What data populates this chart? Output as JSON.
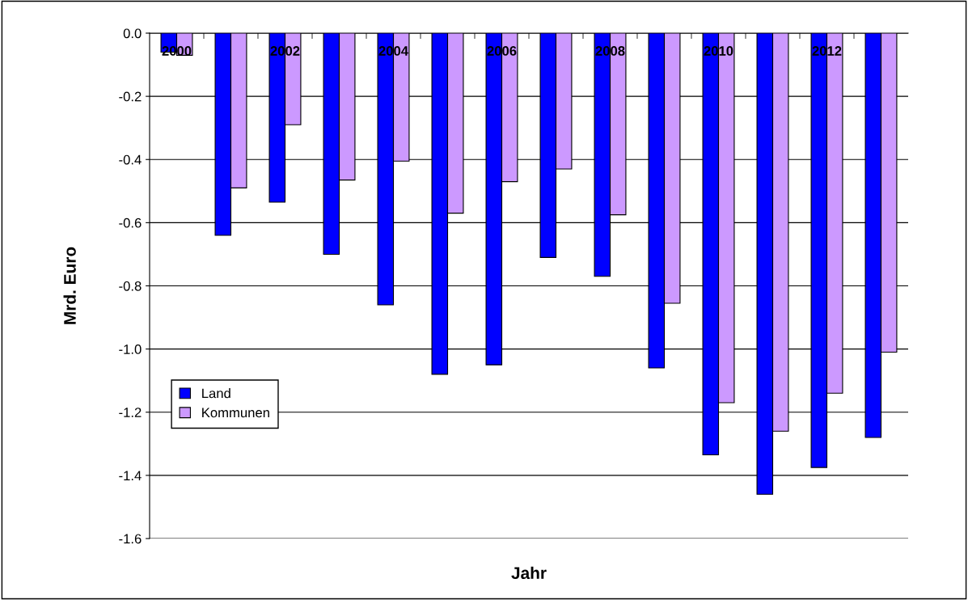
{
  "chart_data": {
    "type": "bar",
    "xlabel": "Jahr",
    "ylabel": "Mrd. Euro",
    "categories": [
      "2000",
      null,
      "2002",
      null,
      "2004",
      null,
      "2006",
      null,
      "2008",
      null,
      "2010",
      null,
      "2012",
      null
    ],
    "series": [
      {
        "name": "Land",
        "color": "#0000ff",
        "values": [
          -0.06,
          -0.64,
          -0.535,
          -0.7,
          -0.86,
          -1.08,
          -1.05,
          -0.71,
          -0.77,
          -1.06,
          -1.335,
          -1.46,
          -1.375,
          -1.28
        ]
      },
      {
        "name": "Kommunen",
        "color": "#cc99ff",
        "values": [
          -0.07,
          -0.49,
          -0.29,
          -0.465,
          -0.405,
          -0.57,
          -0.47,
          -0.43,
          -0.575,
          -0.855,
          -1.17,
          -1.26,
          -1.14,
          -1.01
        ]
      }
    ],
    "ylim": [
      -1.6,
      0.0
    ],
    "yticks": [
      {
        "value": -1.6,
        "label": "-1.6"
      },
      {
        "value": -1.4,
        "label": "-1.4"
      },
      {
        "value": -1.2,
        "label": "-1.2"
      },
      {
        "value": -1.0,
        "label": "-1.0"
      },
      {
        "value": -0.8,
        "label": "-0.8"
      },
      {
        "value": -0.6,
        "label": "-0.6"
      },
      {
        "value": -0.4,
        "label": "-0.4"
      },
      {
        "value": -0.2,
        "label": "-0.2"
      },
      {
        "value": 0.0,
        "label": "0.0"
      }
    ],
    "grid": "y",
    "legend": "left"
  }
}
